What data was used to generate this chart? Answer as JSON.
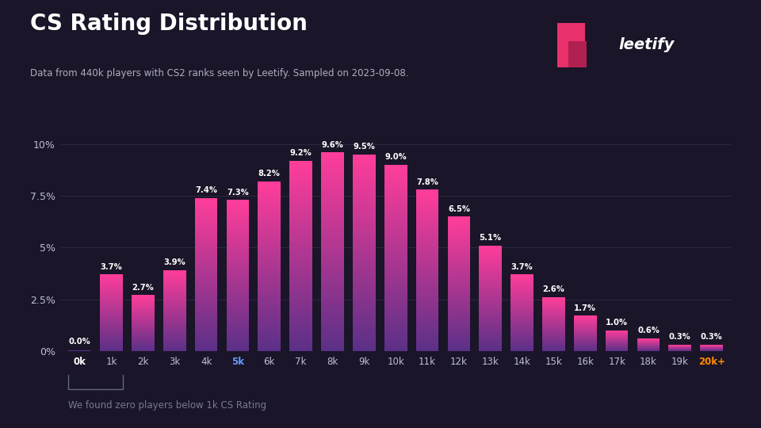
{
  "title": "CS Rating Distribution",
  "subtitle": "Data from 440k players with CS2 ranks seen by Leetify. Sampled on 2023-09-08.",
  "footnote": "We found zero players below 1k CS Rating",
  "categories": [
    "0k",
    "1k",
    "2k",
    "3k",
    "4k",
    "5k",
    "6k",
    "7k",
    "8k",
    "9k",
    "10k",
    "11k",
    "12k",
    "13k",
    "14k",
    "15k",
    "16k",
    "17k",
    "18k",
    "19k",
    "20k+"
  ],
  "values": [
    0.0,
    3.7,
    2.7,
    3.9,
    7.4,
    7.3,
    8.2,
    9.2,
    9.6,
    9.5,
    9.0,
    7.8,
    6.5,
    5.1,
    3.7,
    2.6,
    1.7,
    1.0,
    0.6,
    0.3,
    0.3
  ],
  "bar_color_top": "#FF3D9A",
  "bar_color_bottom": "#5B3088",
  "background_color": "#1a1528",
  "grid_color": "#2e2845",
  "text_color": "#ffffff",
  "subtitle_color": "#b0aec0",
  "footnote_color": "#7a7890",
  "axis_label_color": "#c0bdd8",
  "yticks": [
    0,
    2.5,
    5.0,
    7.5,
    10.0
  ],
  "ylim": [
    0,
    11.8
  ],
  "logo_color": "#E8306A",
  "bracket_color": "#666680",
  "highlight_tick_color": "#6699ff",
  "last_label_color": "#ff8c00",
  "zero_label_fontweight": "bold"
}
